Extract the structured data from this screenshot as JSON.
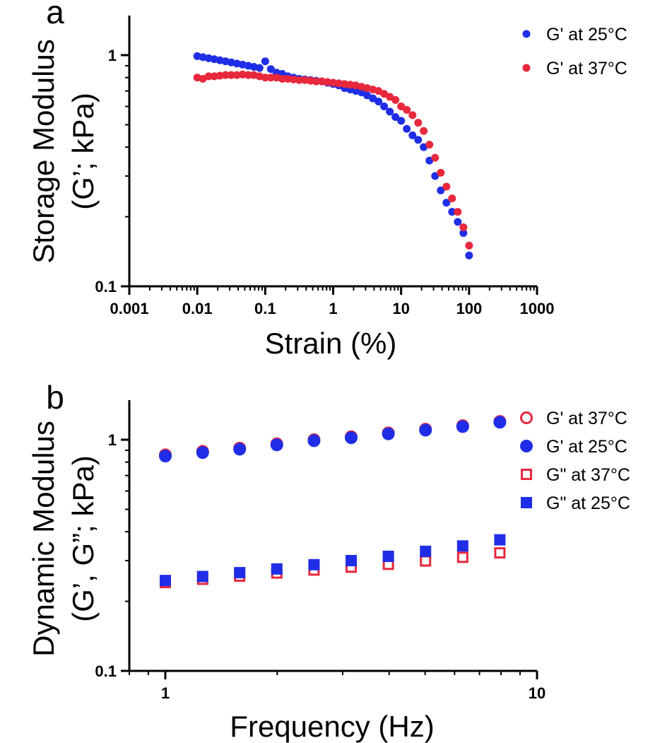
{
  "colors": {
    "blue": "#1f2ee6",
    "red": "#e8283c"
  },
  "chart_data": [
    {
      "panel": "a",
      "type": "scatter",
      "xlabel": "Strain (%)",
      "ylabel_lines": [
        "Storage Modulus",
        "(G’; kPa)"
      ],
      "x_scale": "log",
      "y_scale": "log",
      "xlim": [
        0.001,
        1000
      ],
      "ylim": [
        0.1,
        1.5
      ],
      "x_ticks": [
        {
          "v": 0.001,
          "label": "0.001"
        },
        {
          "v": 0.01,
          "label": "0.01"
        },
        {
          "v": 0.1,
          "label": "0.1"
        },
        {
          "v": 1,
          "label": "1"
        },
        {
          "v": 10,
          "label": "10"
        },
        {
          "v": 100,
          "label": "100"
        },
        {
          "v": 1000,
          "label": "1000"
        }
      ],
      "y_ticks": [
        {
          "v": 0.1,
          "label": "0.1"
        },
        {
          "v": 1,
          "label": "1"
        }
      ],
      "legend_position": "top-right",
      "series": [
        {
          "name": "G' at 25°C",
          "marker": "filled-circle",
          "color": "blue",
          "points": [
            [
              0.01,
              0.99
            ],
            [
              0.0121,
              0.98
            ],
            [
              0.0147,
              0.97
            ],
            [
              0.0178,
              0.96
            ],
            [
              0.0215,
              0.95
            ],
            [
              0.0261,
              0.94
            ],
            [
              0.0316,
              0.93
            ],
            [
              0.0383,
              0.92
            ],
            [
              0.0464,
              0.91
            ],
            [
              0.0562,
              0.9
            ],
            [
              0.0681,
              0.89
            ],
            [
              0.0825,
              0.88
            ],
            [
              0.1,
              0.94
            ],
            [
              0.121,
              0.87
            ],
            [
              0.147,
              0.84
            ],
            [
              0.178,
              0.83
            ],
            [
              0.215,
              0.81
            ],
            [
              0.261,
              0.8
            ],
            [
              0.316,
              0.79
            ],
            [
              0.383,
              0.785
            ],
            [
              0.464,
              0.78
            ],
            [
              0.562,
              0.775
            ],
            [
              0.681,
              0.77
            ],
            [
              0.825,
              0.76
            ],
            [
              1.0,
              0.75
            ],
            [
              1.21,
              0.74
            ],
            [
              1.47,
              0.72
            ],
            [
              1.78,
              0.71
            ],
            [
              2.15,
              0.7
            ],
            [
              2.61,
              0.69
            ],
            [
              3.16,
              0.67
            ],
            [
              3.83,
              0.65
            ],
            [
              4.64,
              0.63
            ],
            [
              5.62,
              0.6
            ],
            [
              6.81,
              0.57
            ],
            [
              8.25,
              0.54
            ],
            [
              10,
              0.52
            ],
            [
              12.1,
              0.48
            ],
            [
              14.7,
              0.45
            ],
            [
              17.8,
              0.43
            ],
            [
              21.5,
              0.4
            ],
            [
              26.1,
              0.35
            ],
            [
              31.6,
              0.3
            ],
            [
              38.3,
              0.26
            ],
            [
              46.4,
              0.23
            ],
            [
              56.2,
              0.21
            ],
            [
              68.1,
              0.19
            ],
            [
              82.5,
              0.17
            ],
            [
              100,
              0.136
            ]
          ]
        },
        {
          "name": "G' at 37°C",
          "marker": "filled-circle",
          "color": "red",
          "points": [
            [
              0.01,
              0.8
            ],
            [
              0.0121,
              0.79
            ],
            [
              0.0147,
              0.81
            ],
            [
              0.0178,
              0.81
            ],
            [
              0.0215,
              0.815
            ],
            [
              0.0261,
              0.82
            ],
            [
              0.0316,
              0.82
            ],
            [
              0.0383,
              0.82
            ],
            [
              0.0464,
              0.825
            ],
            [
              0.0562,
              0.82
            ],
            [
              0.0681,
              0.82
            ],
            [
              0.0825,
              0.81
            ],
            [
              0.1,
              0.8
            ],
            [
              0.121,
              0.8
            ],
            [
              0.147,
              0.8
            ],
            [
              0.178,
              0.79
            ],
            [
              0.215,
              0.79
            ],
            [
              0.261,
              0.785
            ],
            [
              0.316,
              0.78
            ],
            [
              0.383,
              0.78
            ],
            [
              0.464,
              0.775
            ],
            [
              0.562,
              0.77
            ],
            [
              0.681,
              0.77
            ],
            [
              0.825,
              0.765
            ],
            [
              1.0,
              0.76
            ],
            [
              1.21,
              0.755
            ],
            [
              1.47,
              0.75
            ],
            [
              1.78,
              0.745
            ],
            [
              2.15,
              0.74
            ],
            [
              2.61,
              0.73
            ],
            [
              3.16,
              0.72
            ],
            [
              3.83,
              0.71
            ],
            [
              4.64,
              0.7
            ],
            [
              5.62,
              0.68
            ],
            [
              6.81,
              0.66
            ],
            [
              8.25,
              0.64
            ],
            [
              10,
              0.6
            ],
            [
              12.1,
              0.58
            ],
            [
              14.7,
              0.55
            ],
            [
              17.8,
              0.51
            ],
            [
              21.5,
              0.47
            ],
            [
              26.1,
              0.41
            ],
            [
              31.6,
              0.36
            ],
            [
              38.3,
              0.31
            ],
            [
              46.4,
              0.27
            ],
            [
              56.2,
              0.24
            ],
            [
              68.1,
              0.21
            ],
            [
              82.5,
              0.18
            ],
            [
              100,
              0.15
            ]
          ]
        }
      ]
    },
    {
      "panel": "b",
      "type": "scatter",
      "xlabel": "Frequency (Hz)",
      "ylabel_lines": [
        "Dynamic Modulus",
        "(G’, G”; kPa)"
      ],
      "x_scale": "log",
      "y_scale": "log",
      "xlim": [
        0.8,
        10
      ],
      "ylim": [
        0.1,
        1.5
      ],
      "x_ticks": [
        {
          "v": 1,
          "label": "1"
        },
        {
          "v": 10,
          "label": "10"
        }
      ],
      "y_ticks": [
        {
          "v": 0.1,
          "label": "0.1"
        },
        {
          "v": 1,
          "label": "1"
        }
      ],
      "legend_position": "top-right",
      "series": [
        {
          "name": "G' at 37°C",
          "marker": "open-circle",
          "color": "red",
          "points": [
            [
              1.0,
              0.86
            ],
            [
              1.26,
              0.89
            ],
            [
              1.585,
              0.92
            ],
            [
              1.995,
              0.96
            ],
            [
              2.512,
              1.0
            ],
            [
              3.162,
              1.03
            ],
            [
              3.981,
              1.07
            ],
            [
              5.012,
              1.11
            ],
            [
              6.31,
              1.15
            ],
            [
              7.943,
              1.2
            ]
          ]
        },
        {
          "name": "G' at 25°C",
          "marker": "filled-circle",
          "color": "blue",
          "points": [
            [
              1.0,
              0.85
            ],
            [
              1.26,
              0.88
            ],
            [
              1.585,
              0.91
            ],
            [
              1.995,
              0.95
            ],
            [
              2.512,
              0.99
            ],
            [
              3.162,
              1.02
            ],
            [
              3.981,
              1.06
            ],
            [
              5.012,
              1.1
            ],
            [
              6.31,
              1.14
            ],
            [
              7.943,
              1.19
            ]
          ]
        },
        {
          "name": "G\" at 37°C",
          "marker": "open-square",
          "color": "red",
          "points": [
            [
              1.0,
              0.241
            ],
            [
              1.26,
              0.249
            ],
            [
              1.585,
              0.257
            ],
            [
              1.995,
              0.265
            ],
            [
              2.512,
              0.273
            ],
            [
              3.162,
              0.281
            ],
            [
              3.981,
              0.289
            ],
            [
              5.012,
              0.299
            ],
            [
              6.31,
              0.31
            ],
            [
              7.943,
              0.324
            ]
          ]
        },
        {
          "name": "G\" at 25°C",
          "marker": "filled-square",
          "color": "blue",
          "points": [
            [
              1.0,
              0.246
            ],
            [
              1.26,
              0.256
            ],
            [
              1.585,
              0.266
            ],
            [
              1.995,
              0.276
            ],
            [
              2.512,
              0.288
            ],
            [
              3.162,
              0.3
            ],
            [
              3.981,
              0.313
            ],
            [
              5.012,
              0.329
            ],
            [
              6.31,
              0.347
            ],
            [
              7.943,
              0.369
            ]
          ]
        }
      ]
    }
  ]
}
